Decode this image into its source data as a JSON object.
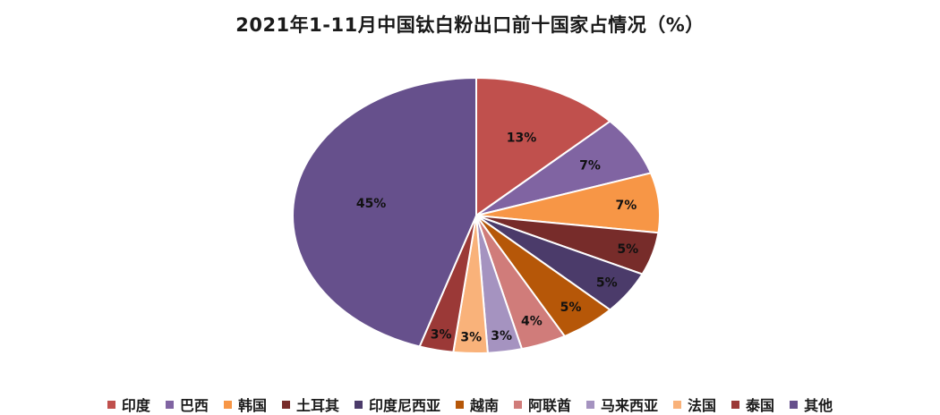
{
  "chart_data": {
    "type": "pie",
    "title": "2021年1-11月中国钛白粉出口前十国家占情况（%）",
    "unit": "%",
    "legend_position": "bottom",
    "slices": [
      {
        "label": "印度",
        "value": 13,
        "display": "13%",
        "color": "#c0504d"
      },
      {
        "label": "巴西",
        "value": 7,
        "display": "7%",
        "color": "#8064a2"
      },
      {
        "label": "韩国",
        "value": 7,
        "display": "7%",
        "color": "#f79646"
      },
      {
        "label": "土耳其",
        "value": 5,
        "display": "5%",
        "color": "#772c2a"
      },
      {
        "label": "印度尼西亚",
        "value": 5,
        "display": "5%",
        "color": "#4b3b6a"
      },
      {
        "label": "越南",
        "value": 5,
        "display": "5%",
        "color": "#b65708"
      },
      {
        "label": "阿联酋",
        "value": 4,
        "display": "4%",
        "color": "#d07c7a"
      },
      {
        "label": "马来西亚",
        "value": 3,
        "display": "3%",
        "color": "#a593c0"
      },
      {
        "label": "法国",
        "value": 3,
        "display": "3%",
        "color": "#f9b27a"
      },
      {
        "label": "泰国",
        "value": 3,
        "display": "3%",
        "color": "#9b3937"
      },
      {
        "label": "其他",
        "value": 45,
        "display": "45%",
        "color": "#66508c"
      }
    ]
  }
}
